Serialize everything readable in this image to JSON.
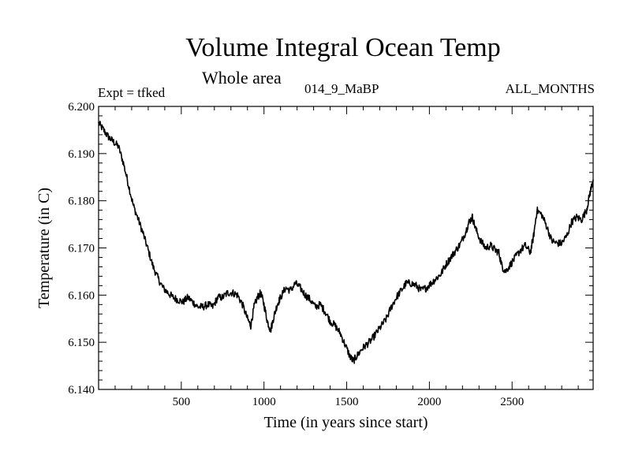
{
  "header": {
    "title": "Volume Integral Ocean Temp",
    "subtitle": "Whole area",
    "expt": "Expt = tfked",
    "run": "014_9_MaBP",
    "months": "ALL_MONTHS"
  },
  "colors": {
    "line": "#000000",
    "background": "#ffffff",
    "axes": "#000000"
  },
  "chart_data": {
    "type": "line",
    "title": "Volume Integral Ocean Temp",
    "subtitle": "Whole area",
    "xlabel": "Time (in years since start)",
    "ylabel": "Temperature (in C)",
    "xlim": [
      0,
      2990
    ],
    "ylim": [
      6.14,
      6.2
    ],
    "xticks": [
      500,
      1000,
      1500,
      2000,
      2500
    ],
    "xtick_labels": [
      "500",
      "1000",
      "1500",
      "2000",
      "2500"
    ],
    "yticks": [
      6.14,
      6.15,
      6.16,
      6.17,
      6.18,
      6.19,
      6.2
    ],
    "ytick_labels": [
      "6.140",
      "6.150",
      "6.160",
      "6.170",
      "6.180",
      "6.190",
      "6.200"
    ],
    "grid": false,
    "legend": "none",
    "series": [
      {
        "x": [
          0,
          30,
          60,
          90,
          120,
          150,
          180,
          210,
          240,
          270,
          300,
          330,
          360,
          390,
          420,
          450,
          480,
          510,
          540,
          570,
          600,
          630,
          660,
          690,
          720,
          750,
          780,
          810,
          840,
          870,
          900,
          920,
          940,
          960,
          980,
          1000,
          1020,
          1040,
          1060,
          1080,
          1100,
          1130,
          1160,
          1190,
          1220,
          1250,
          1280,
          1310,
          1340,
          1370,
          1400,
          1430,
          1460,
          1490,
          1520,
          1540,
          1560,
          1590,
          1620,
          1650,
          1680,
          1710,
          1740,
          1770,
          1800,
          1830,
          1860,
          1890,
          1920,
          1950,
          1980,
          2010,
          2040,
          2070,
          2100,
          2130,
          2160,
          2190,
          2220,
          2240,
          2260,
          2280,
          2310,
          2340,
          2370,
          2400,
          2420,
          2440,
          2460,
          2490,
          2520,
          2550,
          2580,
          2610,
          2630,
          2650,
          2680,
          2710,
          2740,
          2770,
          2800,
          2830,
          2860,
          2890,
          2920,
          2950,
          2970,
          2990
        ],
        "y": [
          6.1965,
          6.195,
          6.1935,
          6.1925,
          6.1915,
          6.188,
          6.1835,
          6.179,
          6.176,
          6.173,
          6.1695,
          6.166,
          6.1635,
          6.1615,
          6.1605,
          6.1595,
          6.159,
          6.1585,
          6.1595,
          6.1585,
          6.1575,
          6.1575,
          6.158,
          6.1575,
          6.1595,
          6.1595,
          6.1605,
          6.1605,
          6.16,
          6.158,
          6.155,
          6.1535,
          6.1575,
          6.1595,
          6.1605,
          6.158,
          6.1545,
          6.1525,
          6.1555,
          6.158,
          6.1595,
          6.1615,
          6.161,
          6.1625,
          6.1615,
          6.16,
          6.159,
          6.1575,
          6.158,
          6.1565,
          6.1545,
          6.1535,
          6.152,
          6.1495,
          6.147,
          6.146,
          6.147,
          6.1485,
          6.1495,
          6.1505,
          6.152,
          6.1535,
          6.155,
          6.1575,
          6.1595,
          6.161,
          6.1625,
          6.1625,
          6.162,
          6.161,
          6.1615,
          6.1625,
          6.1635,
          6.1645,
          6.1665,
          6.168,
          6.1695,
          6.171,
          6.1735,
          6.1755,
          6.1765,
          6.174,
          6.1715,
          6.17,
          6.1705,
          6.1695,
          6.169,
          6.166,
          6.165,
          6.1665,
          6.168,
          6.1695,
          6.1705,
          6.169,
          6.1725,
          6.178,
          6.177,
          6.1745,
          6.1715,
          6.171,
          6.171,
          6.1725,
          6.1755,
          6.1765,
          6.176,
          6.178,
          6.1815,
          6.1845
        ]
      }
    ]
  }
}
